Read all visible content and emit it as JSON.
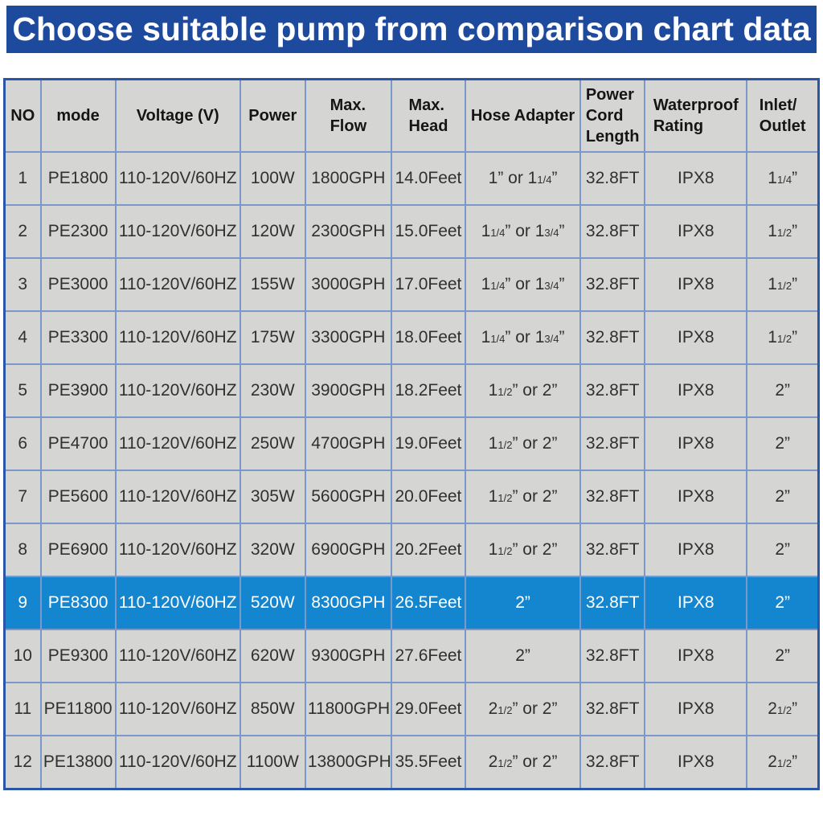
{
  "header": {
    "title": "Choose suitable pump from comparison chart data"
  },
  "colors": {
    "banner_blue": "#1e4a9e",
    "outer_border_blue": "#2b56a7",
    "grid_blue": "#7a99ca",
    "cell_gray": "#d5d6d3",
    "highlight_blue": "#1486d0",
    "highlight_text": "#ffffff",
    "body_text": "#303030"
  },
  "chart_data": {
    "type": "table",
    "title": "Choose suitable pump from comparison chart data",
    "columns": [
      "NO",
      "mode",
      "Voltage (V)",
      "Power",
      "Max.\nFlow",
      "Max.\nHead",
      "Hose Adapter",
      "Power\nCord\nLength",
      "Waterproof\nRating",
      "Inlet/\nOutlet"
    ],
    "highlighted_row_number": 9,
    "rows": [
      [
        "1",
        "PE1800",
        "110-120V/60HZ",
        "100W",
        "1800GPH",
        "14.0Feet",
        "1” or 1{1/4}”",
        "32.8FT",
        "IPX8",
        "1{1/4}”"
      ],
      [
        "2",
        "PE2300",
        "110-120V/60HZ",
        "120W",
        "2300GPH",
        "15.0Feet",
        "1{1/4}” or 1{3/4}”",
        "32.8FT",
        "IPX8",
        "1{1/2}”"
      ],
      [
        "3",
        "PE3000",
        "110-120V/60HZ",
        "155W",
        "3000GPH",
        "17.0Feet",
        "1{1/4}” or 1{3/4}”",
        "32.8FT",
        "IPX8",
        "1{1/2}”"
      ],
      [
        "4",
        "PE3300",
        "110-120V/60HZ",
        "175W",
        "3300GPH",
        "18.0Feet",
        "1{1/4}” or 1{3/4}”",
        "32.8FT",
        "IPX8",
        "1{1/2}”"
      ],
      [
        "5",
        "PE3900",
        "110-120V/60HZ",
        "230W",
        "3900GPH",
        "18.2Feet",
        "1{1/2}” or 2”",
        "32.8FT",
        "IPX8",
        "2”"
      ],
      [
        "6",
        "PE4700",
        "110-120V/60HZ",
        "250W",
        "4700GPH",
        "19.0Feet",
        "1{1/2}” or 2”",
        "32.8FT",
        "IPX8",
        "2”"
      ],
      [
        "7",
        "PE5600",
        "110-120V/60HZ",
        "305W",
        "5600GPH",
        "20.0Feet",
        "1{1/2}” or 2”",
        "32.8FT",
        "IPX8",
        "2”"
      ],
      [
        "8",
        "PE6900",
        "110-120V/60HZ",
        "320W",
        "6900GPH",
        "20.2Feet",
        "1{1/2}” or 2”",
        "32.8FT",
        "IPX8",
        "2”"
      ],
      [
        "9",
        "PE8300",
        "110-120V/60HZ",
        "520W",
        "8300GPH",
        "26.5Feet",
        "2”",
        "32.8FT",
        "IPX8",
        "2”"
      ],
      [
        "10",
        "PE9300",
        "110-120V/60HZ",
        "620W",
        "9300GPH",
        "27.6Feet",
        "2”",
        "32.8FT",
        "IPX8",
        "2”"
      ],
      [
        "11",
        "PE11800",
        "110-120V/60HZ",
        "850W",
        "11800GPH",
        "29.0Feet",
        "2{1/2}” or 2”",
        "32.8FT",
        "IPX8",
        "2{1/2}”"
      ],
      [
        "12",
        "PE13800",
        "110-120V/60HZ",
        "1100W",
        "13800GPH",
        "35.5Feet",
        "2{1/2}” or 2”",
        "32.8FT",
        "IPX8",
        "2{1/2}”"
      ]
    ]
  }
}
